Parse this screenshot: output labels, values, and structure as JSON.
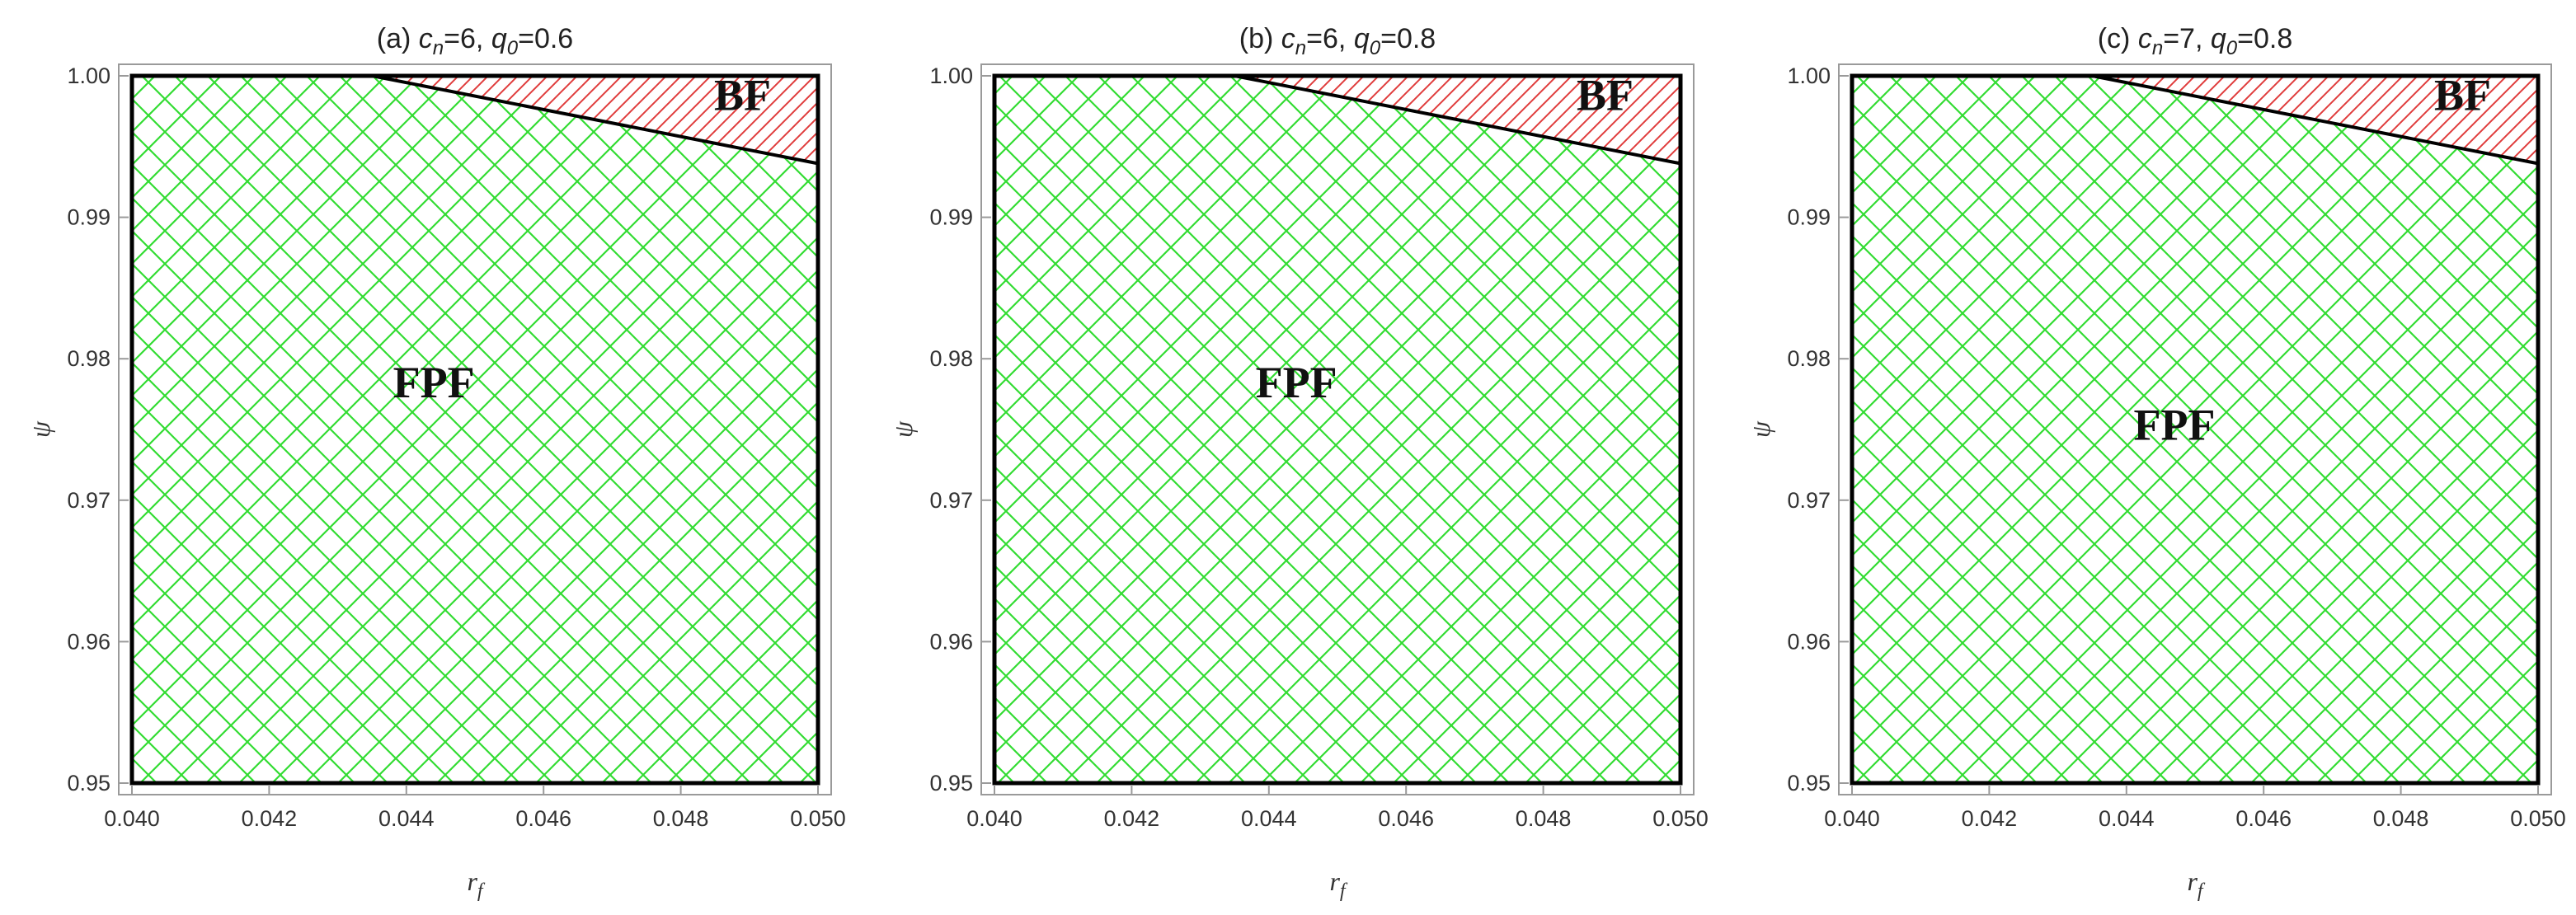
{
  "chart_data": [
    {
      "type": "area",
      "title": {
        "prefix": "(a) ",
        "c": "c",
        "c_sub": "n",
        "c_val": "=6, ",
        "q": "q",
        "q_sub": "0",
        "q_val": "=0.6"
      },
      "xlabel": {
        "main": "r",
        "sub": "f"
      },
      "ylabel": "ψ",
      "xlim": [
        0.04,
        0.05
      ],
      "ylim": [
        0.95,
        1.0
      ],
      "xticks": [
        "0.040",
        "0.042",
        "0.044",
        "0.046",
        "0.048",
        "0.050"
      ],
      "yticks": [
        "0.95",
        "0.96",
        "0.97",
        "0.98",
        "0.99",
        "1.00"
      ],
      "boundary": {
        "x": [
          0.0435,
          0.05
        ],
        "y": [
          1.0,
          0.9938
        ]
      },
      "regions": [
        {
          "label": "FPF",
          "color": "#32dc32",
          "pattern": "crosshatch",
          "label_pos": [
            0.0444,
            0.978
          ]
        },
        {
          "label": "BF",
          "color": "#e03c3c",
          "pattern": "diagonal",
          "label_pos": [
            0.0489,
            0.9983
          ]
        }
      ],
      "grid": false
    },
    {
      "type": "area",
      "title": {
        "prefix": "(b) ",
        "c": "c",
        "c_sub": "n",
        "c_val": "=6, ",
        "q": "q",
        "q_sub": "0",
        "q_val": "=0.8"
      },
      "xlabel": {
        "main": "r",
        "sub": "f"
      },
      "ylabel": "ψ",
      "xlim": [
        0.04,
        0.05
      ],
      "ylim": [
        0.95,
        1.0
      ],
      "xticks": [
        "0.040",
        "0.042",
        "0.044",
        "0.046",
        "0.048",
        "0.050"
      ],
      "yticks": [
        "0.95",
        "0.96",
        "0.97",
        "0.98",
        "0.99",
        "1.00"
      ],
      "boundary": {
        "x": [
          0.0435,
          0.05
        ],
        "y": [
          1.0,
          0.9938
        ]
      },
      "regions": [
        {
          "label": "FPF",
          "color": "#32dc32",
          "pattern": "crosshatch",
          "label_pos": [
            0.0444,
            0.978
          ]
        },
        {
          "label": "BF",
          "color": "#e03c3c",
          "pattern": "diagonal",
          "label_pos": [
            0.0489,
            0.9983
          ]
        }
      ],
      "grid": false
    },
    {
      "type": "area",
      "title": {
        "prefix": "(c) ",
        "c": "c",
        "c_sub": "n",
        "c_val": "=7, ",
        "q": "q",
        "q_sub": "0",
        "q_val": "=0.8"
      },
      "xlabel": {
        "main": "r",
        "sub": "f"
      },
      "ylabel": "ψ",
      "xlim": [
        0.04,
        0.05
      ],
      "ylim": [
        0.95,
        1.0
      ],
      "xticks": [
        "0.040",
        "0.042",
        "0.044",
        "0.046",
        "0.048",
        "0.050"
      ],
      "yticks": [
        "0.95",
        "0.96",
        "0.97",
        "0.98",
        "0.99",
        "1.00"
      ],
      "boundary": {
        "x": [
          0.0435,
          0.05
        ],
        "y": [
          1.0,
          0.9938
        ]
      },
      "regions": [
        {
          "label": "FPF",
          "color": "#32dc32",
          "pattern": "crosshatch",
          "label_pos": [
            0.0447,
            0.975
          ]
        },
        {
          "label": "BF",
          "color": "#e03c3c",
          "pattern": "diagonal",
          "label_pos": [
            0.0489,
            0.9983
          ]
        }
      ],
      "grid": false
    }
  ]
}
